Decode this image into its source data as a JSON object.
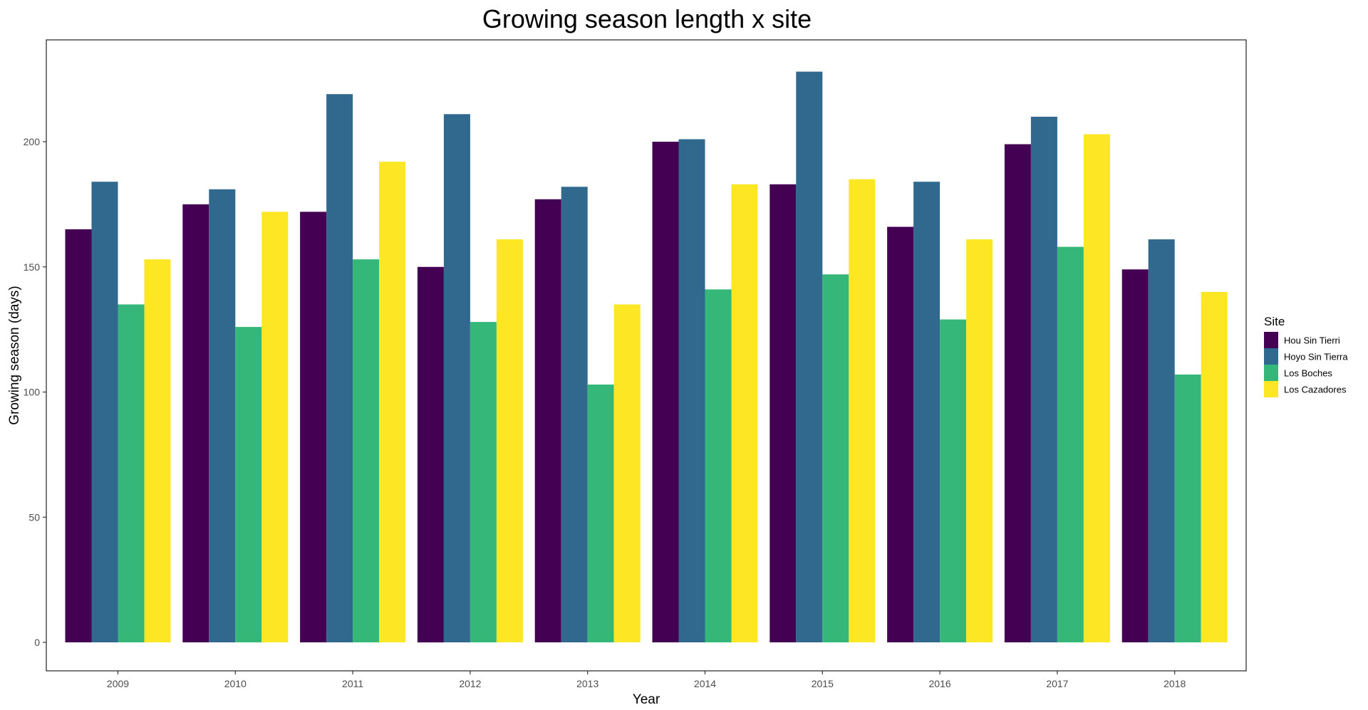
{
  "chart_data": {
    "type": "bar",
    "title": "Growing season length x site",
    "xlabel": "Year",
    "ylabel": "Growing season (days)",
    "categories": [
      "2009",
      "2010",
      "2011",
      "2012",
      "2013",
      "2014",
      "2015",
      "2016",
      "2017",
      "2018"
    ],
    "ylim": [
      0,
      235
    ],
    "yticks": [
      "0",
      "50",
      "100",
      "150",
      "200"
    ],
    "grid": false,
    "legend": {
      "title": "Site",
      "position": "right"
    },
    "series": [
      {
        "name": "Hou Sin Tierri",
        "color": "#440154",
        "values": [
          165,
          175,
          172,
          150,
          177,
          200,
          183,
          166,
          199,
          149
        ]
      },
      {
        "name": "Hoyo Sin Tierra",
        "color": "#31688e",
        "values": [
          184,
          181,
          219,
          211,
          182,
          201,
          228,
          184,
          210,
          161
        ]
      },
      {
        "name": "Los Boches",
        "color": "#35b779",
        "values": [
          135,
          126,
          153,
          128,
          103,
          141,
          147,
          129,
          158,
          107
        ]
      },
      {
        "name": "Los Cazadores",
        "color": "#fde725",
        "values": [
          153,
          172,
          192,
          161,
          135,
          183,
          185,
          161,
          203,
          140
        ]
      }
    ]
  }
}
